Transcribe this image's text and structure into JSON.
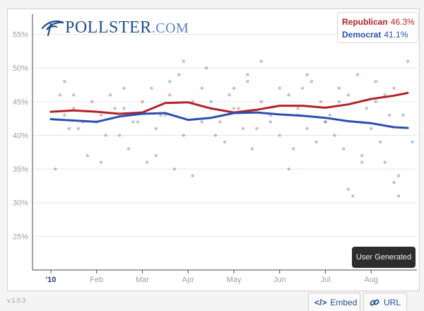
{
  "brand": {
    "name": "POLLSTER",
    "suffix": ".COM"
  },
  "legend": [
    {
      "name": "Republican",
      "value": "46.3%",
      "color": "#b2232a"
    },
    {
      "name": "Democrat",
      "value": "41.1%",
      "color": "#2a4fb0"
    }
  ],
  "badge_label": "User Generated",
  "version": "v.1.0.3",
  "footer": {
    "embed_label": "Embed",
    "url_label": "URL"
  },
  "chart_data": {
    "type": "line",
    "title": "",
    "xlabel": "",
    "ylabel": "",
    "ylim": [
      20,
      58
    ],
    "xlim": [
      -0.4,
      8
    ],
    "grid": {
      "horizontal": true,
      "vertical": false
    },
    "legend_position": "top-right",
    "y_ticks": [
      {
        "value": 25,
        "label": "25%"
      },
      {
        "value": 30,
        "label": "30%"
      },
      {
        "value": 35,
        "label": "35%"
      },
      {
        "value": 40,
        "label": "40%"
      },
      {
        "value": 45,
        "label": "45%"
      },
      {
        "value": 50,
        "label": "50%"
      },
      {
        "value": 55,
        "label": "55%"
      }
    ],
    "x_ticks": [
      {
        "value": 0,
        "label": "'10"
      },
      {
        "value": 1,
        "label": "Feb"
      },
      {
        "value": 2,
        "label": "Mar"
      },
      {
        "value": 3,
        "label": "Apr"
      },
      {
        "value": 4,
        "label": "May"
      },
      {
        "value": 5,
        "label": "Jun"
      },
      {
        "value": 6,
        "label": "Jul"
      },
      {
        "value": 7,
        "label": "Aug"
      }
    ],
    "series": [
      {
        "name": "Republican",
        "color": "#b2232a",
        "x": [
          0,
          0.5,
          1,
          1.5,
          2,
          2.5,
          3,
          3.5,
          4,
          4.5,
          5,
          5.5,
          6,
          6.5,
          7,
          7.5,
          7.8
        ],
        "y": [
          43.5,
          43.7,
          43.5,
          43.2,
          43.4,
          44.8,
          44.9,
          44.0,
          43.4,
          43.8,
          44.4,
          44.4,
          44.1,
          44.6,
          45.4,
          45.9,
          46.3
        ]
      },
      {
        "name": "Democrat",
        "color": "#2a4fb0",
        "x": [
          0,
          0.5,
          1,
          1.5,
          2,
          2.5,
          3,
          3.5,
          4,
          4.5,
          5,
          5.5,
          6,
          6.5,
          7,
          7.5,
          7.8
        ],
        "y": [
          42.4,
          42.2,
          42.0,
          42.8,
          43.2,
          43.3,
          42.3,
          42.6,
          43.3,
          43.4,
          43.1,
          42.9,
          42.6,
          42.1,
          41.8,
          41.2,
          41.1
        ]
      }
    ],
    "polls": [
      {
        "series": "Republican",
        "points": [
          [
            0.2,
            46
          ],
          [
            0.3,
            48
          ],
          [
            0.5,
            44
          ],
          [
            0.7,
            42
          ],
          [
            0.9,
            45
          ],
          [
            1.1,
            43
          ],
          [
            1.3,
            46
          ],
          [
            1.6,
            44
          ],
          [
            1.8,
            42
          ],
          [
            2.0,
            45
          ],
          [
            2.2,
            47
          ],
          [
            2.4,
            43
          ],
          [
            2.6,
            46
          ],
          [
            2.9,
            51
          ],
          [
            3.1,
            45
          ],
          [
            3.3,
            47
          ],
          [
            3.5,
            44
          ],
          [
            3.7,
            42
          ],
          [
            3.9,
            46
          ],
          [
            4.1,
            44
          ],
          [
            4.3,
            48
          ],
          [
            4.6,
            45
          ],
          [
            4.8,
            43
          ],
          [
            5.0,
            47
          ],
          [
            5.2,
            46
          ],
          [
            5.4,
            44
          ],
          [
            5.7,
            48
          ],
          [
            5.9,
            45
          ],
          [
            6.1,
            43
          ],
          [
            6.3,
            47
          ],
          [
            6.5,
            46
          ],
          [
            6.7,
            49
          ],
          [
            6.9,
            44
          ],
          [
            7.1,
            48
          ],
          [
            7.3,
            46
          ],
          [
            7.5,
            47
          ],
          [
            7.6,
            31
          ],
          [
            7.8,
            51
          ],
          [
            0.4,
            41
          ],
          [
            1.5,
            40
          ],
          [
            2.3,
            37
          ],
          [
            3.6,
            40
          ],
          [
            4.5,
            41
          ],
          [
            5.3,
            38
          ],
          [
            6.0,
            42
          ],
          [
            6.8,
            36
          ],
          [
            7.4,
            43
          ],
          [
            2.8,
            49
          ],
          [
            4.0,
            47
          ],
          [
            5.6,
            49
          ]
        ]
      },
      {
        "series": "Democrat",
        "points": [
          [
            0.1,
            35
          ],
          [
            0.3,
            43
          ],
          [
            0.6,
            41
          ],
          [
            0.8,
            37
          ],
          [
            1.0,
            42
          ],
          [
            1.2,
            40
          ],
          [
            1.4,
            44
          ],
          [
            1.7,
            38
          ],
          [
            1.9,
            42
          ],
          [
            2.1,
            36
          ],
          [
            2.3,
            41
          ],
          [
            2.5,
            43
          ],
          [
            2.7,
            35
          ],
          [
            2.9,
            40
          ],
          [
            3.1,
            34
          ],
          [
            3.3,
            42
          ],
          [
            3.5,
            45
          ],
          [
            3.8,
            39
          ],
          [
            4.0,
            44
          ],
          [
            4.2,
            41
          ],
          [
            4.4,
            38
          ],
          [
            4.6,
            51
          ],
          [
            4.8,
            42
          ],
          [
            5.0,
            40
          ],
          [
            5.2,
            35
          ],
          [
            5.4,
            43
          ],
          [
            5.6,
            41
          ],
          [
            5.8,
            39
          ],
          [
            6.0,
            42
          ],
          [
            6.2,
            40
          ],
          [
            6.4,
            38
          ],
          [
            6.5,
            32
          ],
          [
            6.6,
            31
          ],
          [
            6.8,
            37
          ],
          [
            7.0,
            41
          ],
          [
            7.2,
            39
          ],
          [
            7.3,
            36
          ],
          [
            7.5,
            33
          ],
          [
            7.6,
            34
          ],
          [
            7.7,
            43
          ],
          [
            7.9,
            39
          ],
          [
            0.5,
            46
          ],
          [
            1.6,
            47
          ],
          [
            2.6,
            48
          ],
          [
            3.4,
            50
          ],
          [
            4.3,
            49
          ],
          [
            5.5,
            47
          ],
          [
            6.3,
            45
          ],
          [
            7.1,
            45
          ],
          [
            1.1,
            36
          ]
        ]
      }
    ]
  }
}
